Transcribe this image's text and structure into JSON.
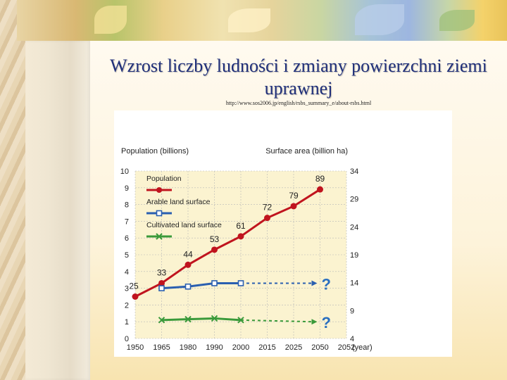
{
  "slide": {
    "title": "Wzrost liczby ludności i zmiany powierzchni ziemi uprawnej",
    "source_url": "http://www.sos2006.jp/english/rsbs_summary_e/about-rsbs.html"
  },
  "colors": {
    "title": "#1f2f7a",
    "population": "#c0141e",
    "arable": "#2a5fb0",
    "cultivated": "#3a9a3a",
    "question_mark": "#2a6fc0",
    "chart_bg": "#fbf3d0",
    "grid": "#b8b8b8"
  },
  "chart_data": {
    "type": "line",
    "left_axis_title": "Population (billions)",
    "right_axis_title": "Surface area (billion ha)",
    "x_unit_label": "(year)",
    "x_ticks": [
      "1950",
      "1965",
      "1980",
      "1990",
      "2000",
      "2015",
      "2025",
      "2050",
      "2052"
    ],
    "y_left_ticks": [
      0,
      1,
      2,
      3,
      4,
      5,
      6,
      7,
      8,
      9,
      10
    ],
    "y_right_ticks": [
      4,
      9,
      14,
      19,
      24,
      29,
      34
    ],
    "y_left_range": [
      0,
      10
    ],
    "y_right_range": [
      4,
      34
    ],
    "grid": true,
    "legend_position": "top-left",
    "series": [
      {
        "name": "Population",
        "axis": "left",
        "marker": "circle",
        "points": [
          {
            "x": "1950",
            "y": 2.5,
            "label": "25"
          },
          {
            "x": "1965",
            "y": 3.3,
            "label": "33"
          },
          {
            "x": "1980",
            "y": 4.4,
            "label": "44"
          },
          {
            "x": "1990",
            "y": 5.3,
            "label": "53"
          },
          {
            "x": "2000",
            "y": 6.1,
            "label": "61"
          },
          {
            "x": "2015",
            "y": 7.2,
            "label": "72"
          },
          {
            "x": "2025",
            "y": 7.9,
            "label": "79"
          },
          {
            "x": "2050",
            "y": 8.9,
            "label": "89"
          }
        ]
      },
      {
        "name": "Arable land surface",
        "axis": "left",
        "marker": "square",
        "points": [
          {
            "x": "1965",
            "y": 3.0
          },
          {
            "x": "1980",
            "y": 3.1
          },
          {
            "x": "1990",
            "y": 3.3
          },
          {
            "x": "2000",
            "y": 3.3
          }
        ],
        "projection_to": {
          "x": "2050",
          "y": 3.3
        },
        "projection_label": "?"
      },
      {
        "name": "Cultivated land surface",
        "axis": "left",
        "marker": "x",
        "points": [
          {
            "x": "1965",
            "y": 1.1
          },
          {
            "x": "1980",
            "y": 1.15
          },
          {
            "x": "1990",
            "y": 1.2
          },
          {
            "x": "2000",
            "y": 1.1
          }
        ],
        "projection_to": {
          "x": "2050",
          "y": 1.0
        },
        "projection_label": "?"
      }
    ]
  }
}
